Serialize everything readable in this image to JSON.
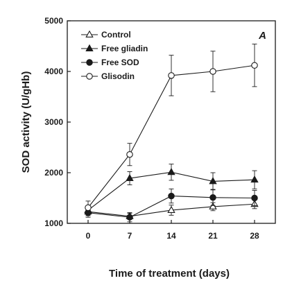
{
  "chart_data": {
    "type": "line",
    "panel_label": "A",
    "xlabel": "Time of treatment (days)",
    "ylabel": "SOD activity (U/gHb)",
    "x": [
      0,
      7,
      14,
      21,
      28
    ],
    "xlim": [
      -3.5,
      31.5
    ],
    "ylim": [
      1000,
      5000
    ],
    "y_ticks": [
      1000,
      2000,
      3000,
      4000,
      5000
    ],
    "grid": false,
    "legend_position": "top-left",
    "series": [
      {
        "name": "Control",
        "marker": "triangle-open",
        "color": "#1a1a1a",
        "values": [
          1230,
          1140,
          1260,
          1330,
          1380
        ],
        "errors": [
          80,
          60,
          100,
          80,
          90
        ]
      },
      {
        "name": "Free gliadin",
        "marker": "triangle-filled",
        "color": "#1a1a1a",
        "values": [
          1260,
          1890,
          2010,
          1830,
          1860
        ],
        "errors": [
          80,
          130,
          160,
          170,
          180
        ]
      },
      {
        "name": "Free SOD",
        "marker": "circle-filled",
        "color": "#1a1a1a",
        "values": [
          1210,
          1120,
          1540,
          1510,
          1500
        ],
        "errors": [
          90,
          90,
          140,
          160,
          150
        ]
      },
      {
        "name": "Glisodin",
        "marker": "circle-open",
        "color": "#1a1a1a",
        "values": [
          1310,
          2360,
          3920,
          4000,
          4120
        ],
        "errors": [
          130,
          220,
          400,
          400,
          420
        ]
      }
    ]
  }
}
